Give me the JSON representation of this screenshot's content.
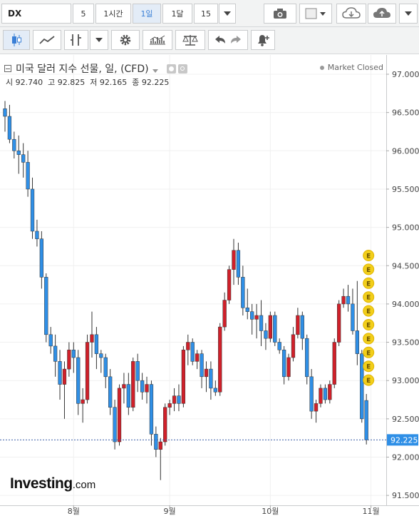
{
  "toolbar": {
    "symbol": "DX",
    "intervals": [
      "5",
      "1시간",
      "1일",
      "1달",
      "15"
    ],
    "active_interval": "1일",
    "colors": {
      "active_bg": "#e3ecf7",
      "active_text": "#3a7fd6",
      "up": "#d0202a",
      "down": "#2f8fe6"
    },
    "icons": [
      "dropdown-caret-icon",
      "camera-icon",
      "color-swatch-icon",
      "cloud-download-icon",
      "cloud-upload-icon",
      "candlestick-icon",
      "line-chart-icon",
      "indicator-icon",
      "gear-icon",
      "studies-icon",
      "scales-icon",
      "undo-icon",
      "redo-icon",
      "alert-bell-icon"
    ]
  },
  "legend": {
    "title": "미국 달러 지수 선물, 일, (CFD)",
    "ohlc": "시 92.740  고 92.825  저 92.165  종 92.225",
    "status": "Market Closed"
  },
  "watermark": {
    "brand": "Investing",
    "suffix": ".com"
  },
  "earnings_marker": "E",
  "chart_data": {
    "type": "candlestick",
    "title": "미국 달러 지수 선물, 일, (CFD)",
    "y_ticks": [
      "97.000",
      "96.500",
      "96.000",
      "95.500",
      "95.000",
      "94.500",
      "94.000",
      "93.500",
      "93.000",
      "92.500",
      "92.000",
      "91.500"
    ],
    "x_ticks": [
      {
        "label": "8월",
        "index": 15
      },
      {
        "label": "9월",
        "index": 36
      },
      {
        "label": "10월",
        "index": 58
      },
      {
        "label": "11월",
        "index": 80
      }
    ],
    "ylim": [
      91.5,
      97.0
    ],
    "last_price": 92.225,
    "last_price_label": "92.225",
    "candles": [
      [
        96.55,
        96.65,
        96.25,
        96.45
      ],
      [
        96.45,
        96.6,
        96.1,
        96.15
      ],
      [
        96.15,
        96.25,
        95.9,
        96.0
      ],
      [
        96.0,
        96.2,
        95.7,
        95.95
      ],
      [
        95.95,
        96.1,
        95.65,
        95.85
      ],
      [
        95.85,
        96.0,
        95.4,
        95.5
      ],
      [
        95.5,
        95.65,
        94.85,
        94.95
      ],
      [
        94.95,
        95.1,
        94.75,
        94.85
      ],
      [
        94.85,
        94.95,
        94.2,
        94.35
      ],
      [
        94.35,
        94.4,
        93.5,
        93.6
      ],
      [
        93.6,
        93.7,
        93.35,
        93.45
      ],
      [
        93.45,
        93.6,
        93.05,
        93.25
      ],
      [
        93.25,
        93.4,
        92.75,
        92.95
      ],
      [
        92.95,
        93.25,
        92.5,
        93.15
      ],
      [
        93.15,
        93.5,
        93.05,
        93.4
      ],
      [
        93.4,
        93.5,
        93.1,
        93.3
      ],
      [
        93.3,
        93.4,
        92.55,
        92.7
      ],
      [
        92.7,
        92.9,
        92.45,
        92.75
      ],
      [
        92.75,
        93.6,
        92.7,
        93.5
      ],
      [
        93.5,
        93.9,
        93.3,
        93.6
      ],
      [
        93.6,
        93.7,
        93.15,
        93.35
      ],
      [
        93.35,
        93.4,
        93.1,
        93.3
      ],
      [
        93.3,
        93.35,
        92.9,
        93.05
      ],
      [
        93.05,
        93.15,
        92.55,
        92.65
      ],
      [
        92.65,
        92.75,
        92.1,
        92.2
      ],
      [
        92.2,
        92.95,
        92.15,
        92.9
      ],
      [
        92.9,
        93.1,
        92.7,
        92.95
      ],
      [
        92.95,
        93.1,
        92.55,
        92.65
      ],
      [
        92.65,
        93.3,
        92.6,
        93.25
      ],
      [
        93.25,
        93.35,
        92.85,
        93.0
      ],
      [
        93.0,
        93.1,
        92.75,
        92.85
      ],
      [
        92.85,
        93.05,
        92.7,
        92.95
      ],
      [
        92.95,
        93.0,
        92.15,
        92.3
      ],
      [
        92.3,
        92.4,
        92.0,
        92.1
      ],
      [
        92.1,
        92.25,
        91.7,
        92.2
      ],
      [
        92.2,
        92.7,
        92.15,
        92.65
      ],
      [
        92.65,
        92.75,
        92.55,
        92.7
      ],
      [
        92.7,
        92.9,
        92.6,
        92.8
      ],
      [
        92.8,
        92.95,
        92.6,
        92.7
      ],
      [
        92.7,
        93.45,
        92.65,
        93.4
      ],
      [
        93.4,
        93.6,
        93.2,
        93.5
      ],
      [
        93.5,
        93.55,
        93.2,
        93.25
      ],
      [
        93.25,
        93.4,
        93.15,
        93.35
      ],
      [
        93.35,
        93.4,
        92.9,
        93.05
      ],
      [
        93.05,
        93.25,
        92.85,
        93.15
      ],
      [
        93.15,
        93.25,
        92.75,
        92.9
      ],
      [
        92.9,
        93.0,
        92.8,
        92.85
      ],
      [
        92.85,
        93.75,
        92.8,
        93.7
      ],
      [
        93.7,
        94.15,
        93.65,
        94.05
      ],
      [
        94.05,
        94.5,
        94.0,
        94.45
      ],
      [
        94.45,
        94.85,
        94.25,
        94.7
      ],
      [
        94.7,
        94.8,
        94.25,
        94.35
      ],
      [
        94.35,
        94.5,
        93.85,
        93.95
      ],
      [
        93.95,
        94.2,
        93.8,
        93.9
      ],
      [
        93.9,
        94.0,
        93.6,
        93.8
      ],
      [
        93.8,
        94.0,
        93.55,
        93.85
      ],
      [
        93.85,
        94.05,
        93.45,
        93.65
      ],
      [
        93.65,
        93.75,
        93.4,
        93.55
      ],
      [
        93.55,
        93.9,
        93.5,
        93.85
      ],
      [
        93.85,
        93.9,
        93.45,
        93.5
      ],
      [
        93.5,
        93.55,
        93.35,
        93.4
      ],
      [
        93.4,
        93.45,
        92.95,
        93.05
      ],
      [
        93.05,
        93.35,
        93.0,
        93.3
      ],
      [
        93.3,
        93.7,
        93.25,
        93.6
      ],
      [
        93.6,
        93.95,
        93.55,
        93.85
      ],
      [
        93.85,
        93.9,
        93.4,
        93.55
      ],
      [
        93.55,
        93.6,
        92.95,
        93.05
      ],
      [
        93.05,
        93.15,
        92.5,
        92.6
      ],
      [
        92.6,
        92.75,
        92.45,
        92.7
      ],
      [
        92.7,
        92.95,
        92.65,
        92.9
      ],
      [
        92.9,
        92.95,
        92.7,
        92.75
      ],
      [
        92.75,
        93.0,
        92.7,
        92.95
      ],
      [
        92.95,
        93.55,
        92.9,
        93.5
      ],
      [
        93.5,
        94.05,
        93.45,
        94.0
      ],
      [
        94.0,
        94.2,
        93.95,
        94.1
      ],
      [
        94.1,
        94.25,
        93.9,
        94.0
      ],
      [
        94.0,
        94.2,
        93.6,
        93.65
      ],
      [
        93.65,
        94.3,
        93.2,
        93.35
      ],
      [
        93.35,
        93.4,
        92.45,
        92.5
      ],
      [
        92.74,
        92.825,
        92.165,
        92.225
      ]
    ],
    "event_markers": {
      "label": "E",
      "count": 10,
      "candle_index": 79
    }
  }
}
